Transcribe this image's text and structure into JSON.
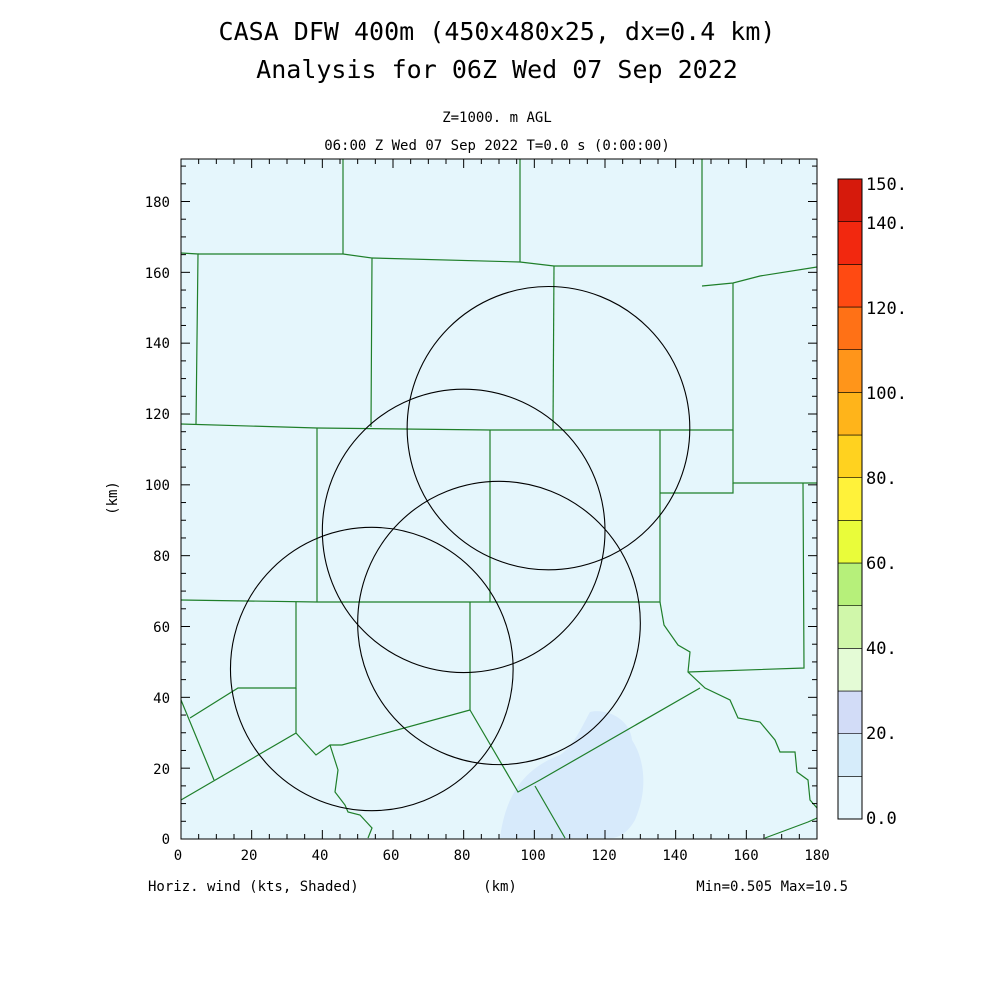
{
  "title": {
    "line1": "CASA DFW 400m (450x480x25, dx=0.4 km)",
    "line2": "Analysis for 06Z Wed 07 Sep 2022"
  },
  "subtitle": {
    "level": "Z=1000. m AGL",
    "time": "06:00 Z Wed 07 Sep 2022    T=0.0 s (0:00:00)"
  },
  "axes": {
    "xlabel": "(km)",
    "ylabel": "(km)",
    "xlim": [
      0,
      180
    ],
    "ylim": [
      0,
      192
    ],
    "xticks": [
      "0",
      "20",
      "40",
      "60",
      "80",
      "100",
      "120",
      "140",
      "160",
      "180"
    ],
    "yticks": [
      "0",
      "20",
      "40",
      "60",
      "80",
      "100",
      "120",
      "140",
      "160",
      "180"
    ]
  },
  "footer": {
    "field": "Horiz. wind (kts, Shaded)",
    "minmax": "Min=0.505 Max=10.5"
  },
  "colorbar": {
    "labels": [
      "0.0",
      "20.",
      "40.",
      "60.",
      "80.",
      "100.",
      "120.",
      "140.",
      "150."
    ],
    "colors": [
      "#e6f6fd",
      "#d6ecfa",
      "#d2dcf7",
      "#e4fbd6",
      "#d0f7aa",
      "#b6f07a",
      "#e9fc3a",
      "#fff23a",
      "#ffd21f",
      "#ffb41a",
      "#ff951a",
      "#ff7116",
      "#ff4a12",
      "#f2280f",
      "#d61a0c",
      "#b70a06",
      "#9e0000"
    ]
  },
  "colors": {
    "background_field": "#e5f6fc",
    "weak_wind_patch": "#d7eafb",
    "county_lines": "#1f7f2a",
    "radar_rings": "#000000"
  },
  "radar_rings": [
    {
      "name": "ring-northeast",
      "center": [
        104,
        116
      ],
      "radius_km": 40
    },
    {
      "name": "ring-center",
      "center": [
        80,
        87
      ],
      "radius_km": 40
    },
    {
      "name": "ring-east",
      "center": [
        90,
        61
      ],
      "radius_km": 40
    },
    {
      "name": "ring-southwest",
      "center": [
        54,
        48
      ],
      "radius_km": 40
    }
  ]
}
